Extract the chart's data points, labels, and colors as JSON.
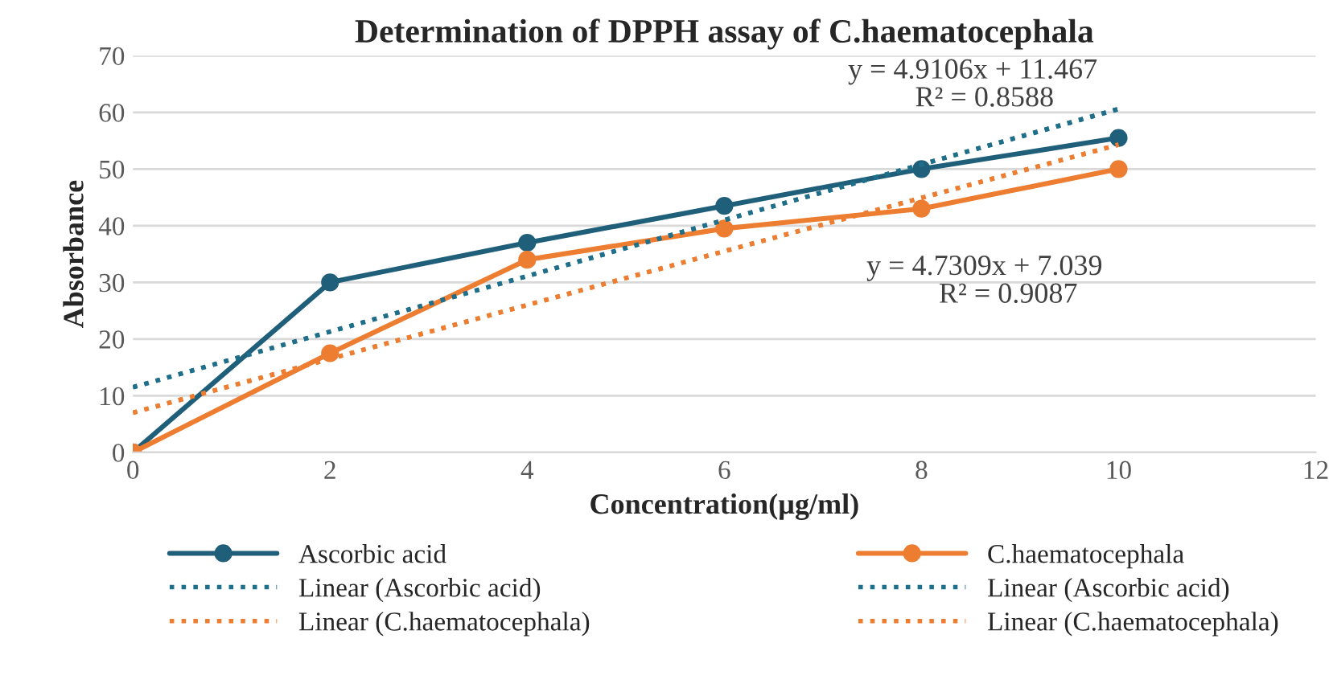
{
  "chart_data": {
    "type": "line",
    "title": "Determination of DPPH assay of C.haematocephala",
    "xlabel": "Concentration(µg/ml)",
    "ylabel": "Absorbance",
    "x": [
      0,
      2,
      4,
      6,
      8,
      10
    ],
    "xlim": [
      0,
      12
    ],
    "xticks": [
      0,
      2,
      4,
      6,
      8,
      10,
      12
    ],
    "ylim": [
      0,
      70
    ],
    "yticks": [
      0,
      10,
      20,
      30,
      40,
      50,
      60,
      70
    ],
    "grid": "y",
    "legend": "bottom",
    "series": [
      {
        "name": "Ascorbic acid",
        "color": "#1f5f7a",
        "values": [
          0,
          30,
          37,
          43.5,
          50,
          55.5
        ],
        "marker": "circle",
        "line_style": "solid"
      },
      {
        "name": "C.haematocephala",
        "color": "#ed7d31",
        "values": [
          0,
          17.5,
          34,
          39.5,
          43,
          50
        ],
        "marker": "circle",
        "line_style": "solid"
      },
      {
        "name": "Linear (Ascorbic acid)",
        "color": "#1f6f8b",
        "values": [
          11.5,
          21.3,
          31.1,
          41.0,
          50.8,
          60.6
        ],
        "marker": "none",
        "line_style": "dotted"
      },
      {
        "name": "Linear (Ascorbic acid)",
        "color": "#1f6f8b",
        "values": [
          11.5,
          21.3,
          31.1,
          41.0,
          50.8,
          60.6
        ],
        "marker": "none",
        "line_style": "dotted"
      },
      {
        "name": "Linear (C.haematocephala)",
        "color": "#ed7d31",
        "values": [
          7.0,
          16.5,
          26.0,
          35.5,
          44.9,
          54.3
        ],
        "marker": "none",
        "line_style": "dotted"
      },
      {
        "name": "Linear (C.haematocephala)",
        "color": "#ed7d31",
        "values": [
          7.0,
          16.5,
          26.0,
          35.5,
          44.9,
          54.3
        ],
        "marker": "none",
        "line_style": "dotted"
      }
    ],
    "annotations": [
      "y = 4.9106x + 11.467",
      "R² = 0.8588",
      "y = 4.7309x + 7.039",
      "R² = 0.9087"
    ]
  }
}
